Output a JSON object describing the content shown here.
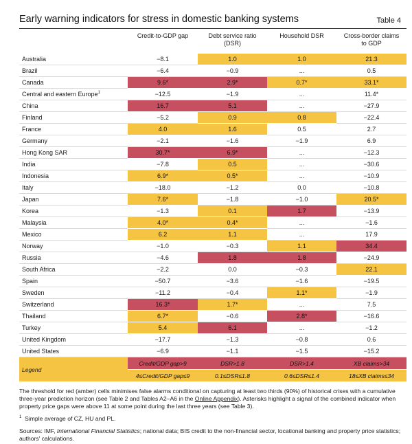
{
  "title": "Early warning indicators for stress in domestic banking systems",
  "table_number": "Table 4",
  "columns": [
    "Credit-to-GDP gap",
    "Debt service ratio (DSR)",
    "Household DSR",
    "Cross-border claims to GDP"
  ],
  "rows": [
    {
      "country": "Australia",
      "fn": "",
      "values": [
        "−8.1",
        "1.0",
        "1.0",
        "21.3"
      ],
      "signals": [
        "",
        "a",
        "a",
        "a"
      ]
    },
    {
      "country": "Brazil",
      "fn": "",
      "values": [
        "−6.4",
        "−0.9",
        "...",
        "0.5"
      ],
      "signals": [
        "",
        "",
        "",
        ""
      ]
    },
    {
      "country": "Canada",
      "fn": "",
      "values": [
        "9.6*",
        "2.9*",
        "0.7*",
        "33.1*"
      ],
      "signals": [
        "r",
        "r",
        "a",
        "a"
      ]
    },
    {
      "country": "Central and eastern Europe",
      "fn": "1",
      "values": [
        "−12.5",
        "−1.9",
        "...",
        "11.4*"
      ],
      "signals": [
        "",
        "",
        "",
        ""
      ]
    },
    {
      "country": "China",
      "fn": "",
      "values": [
        "16.7",
        "5.1",
        "...",
        "−27.9"
      ],
      "signals": [
        "r",
        "r",
        "",
        ""
      ]
    },
    {
      "country": "Finland",
      "fn": "",
      "values": [
        "−5.2",
        "0.9",
        "0.8",
        "−22.4"
      ],
      "signals": [
        "",
        "a",
        "a",
        ""
      ]
    },
    {
      "country": "France",
      "fn": "",
      "values": [
        "4.0",
        "1.6",
        "0.5",
        "2.7"
      ],
      "signals": [
        "a",
        "a",
        "",
        ""
      ]
    },
    {
      "country": "Germany",
      "fn": "",
      "values": [
        "−2.1",
        "−1.6",
        "−1.9",
        "6.9"
      ],
      "signals": [
        "",
        "",
        "",
        ""
      ]
    },
    {
      "country": "Hong Kong SAR",
      "fn": "",
      "values": [
        "30.7*",
        "6.9*",
        "...",
        "−12.3"
      ],
      "signals": [
        "r",
        "r",
        "",
        ""
      ]
    },
    {
      "country": "India",
      "fn": "",
      "values": [
        "−7.8",
        "0.5",
        "...",
        "−30.6"
      ],
      "signals": [
        "",
        "a",
        "",
        ""
      ]
    },
    {
      "country": "Indonesia",
      "fn": "",
      "values": [
        "6.9*",
        "0.5*",
        "...",
        "−10.9"
      ],
      "signals": [
        "a",
        "a",
        "",
        ""
      ]
    },
    {
      "country": "Italy",
      "fn": "",
      "values": [
        "−18.0",
        "−1.2",
        "0.0",
        "−10.8"
      ],
      "signals": [
        "",
        "",
        "",
        ""
      ]
    },
    {
      "country": "Japan",
      "fn": "",
      "values": [
        "7.6*",
        "−1.8",
        "−1.0",
        "20.5*"
      ],
      "signals": [
        "a",
        "",
        "",
        "a"
      ]
    },
    {
      "country": "Korea",
      "fn": "",
      "values": [
        "−1.3",
        "0.1",
        "1.7",
        "−13.9"
      ],
      "signals": [
        "",
        "a",
        "r",
        ""
      ]
    },
    {
      "country": "Malaysia",
      "fn": "",
      "values": [
        "4.0*",
        "0.4*",
        "...",
        "−1.6"
      ],
      "signals": [
        "a",
        "a",
        "",
        ""
      ]
    },
    {
      "country": "Mexico",
      "fn": "",
      "values": [
        "6.2",
        "1.1",
        "...",
        "17.9"
      ],
      "signals": [
        "a",
        "a",
        "",
        ""
      ]
    },
    {
      "country": "Norway",
      "fn": "",
      "values": [
        "−1.0",
        "−0.3",
        "1.1",
        "34.4"
      ],
      "signals": [
        "",
        "",
        "a",
        "r"
      ]
    },
    {
      "country": "Russia",
      "fn": "",
      "values": [
        "−4.6",
        "1.8",
        "1.8",
        "−24.9"
      ],
      "signals": [
        "",
        "r",
        "r",
        ""
      ]
    },
    {
      "country": "South Africa",
      "fn": "",
      "values": [
        "−2.2",
        "0.0",
        "−0.3",
        "22.1"
      ],
      "signals": [
        "",
        "",
        "",
        "a"
      ]
    },
    {
      "country": "Spain",
      "fn": "",
      "values": [
        "−50.7",
        "−3.6",
        "−1.6",
        "−19.5"
      ],
      "signals": [
        "",
        "",
        "",
        ""
      ]
    },
    {
      "country": "Sweden",
      "fn": "",
      "values": [
        "−11.2",
        "−0.4",
        "1.1*",
        "−1.9"
      ],
      "signals": [
        "",
        "",
        "a",
        ""
      ]
    },
    {
      "country": "Switzerland",
      "fn": "",
      "values": [
        "16.3*",
        "1.7*",
        "...",
        "7.5"
      ],
      "signals": [
        "r",
        "a",
        "",
        ""
      ]
    },
    {
      "country": "Thailand",
      "fn": "",
      "values": [
        "6.7*",
        "−0.6",
        "2.8*",
        "−16.6"
      ],
      "signals": [
        "a",
        "",
        "r",
        ""
      ]
    },
    {
      "country": "Turkey",
      "fn": "",
      "values": [
        "5.4",
        "6.1",
        "...",
        "−1.2"
      ],
      "signals": [
        "a",
        "r",
        "",
        ""
      ]
    },
    {
      "country": "United Kingdom",
      "fn": "",
      "values": [
        "−17.7",
        "−1.3",
        "−0.8",
        "0.6"
      ],
      "signals": [
        "",
        "",
        "",
        ""
      ]
    },
    {
      "country": "United States",
      "fn": "",
      "values": [
        "−6.9",
        "−1.1",
        "−1.5",
        "−15.2"
      ],
      "signals": [
        "",
        "",
        "",
        ""
      ]
    }
  ],
  "legend": {
    "label": "Legend",
    "red": [
      "Credit/GDP gap>9",
      "DSR>1.8",
      "DSR>1.4",
      "XB claims>34"
    ],
    "amber": [
      "4≤Credit/GDP gap≤9",
      "0.1≤DSR≤1.8",
      "0.6≤DSR≤1.4",
      "18≤XB claims≤34"
    ]
  },
  "notes": {
    "threshold_part1": "The threshold for red (amber) cells minimises false alarms conditional on capturing at least two thirds (90%) of historical crises with a cumulative three-year prediction horizon (see Table 2 and Tables A2–A6 in the ",
    "threshold_link": "Online Appendix",
    "threshold_part2": "). Asterisks highlight a signal of the combined indicator when property price gaps were above 11 at some point during the last three years (see Table 3).",
    "footnote_mark": "1",
    "footnote_text": "Simple average of CZ, HU and PL.",
    "sources_prefix": "Sources: IMF, ",
    "sources_italic": "International Financial Statistics",
    "sources_rest": "; national data; BIS credit to the non-financial sector, locational banking and property price statistics; authors' calculations."
  },
  "colors": {
    "red": "#c65060",
    "amber": "#f6c443"
  }
}
